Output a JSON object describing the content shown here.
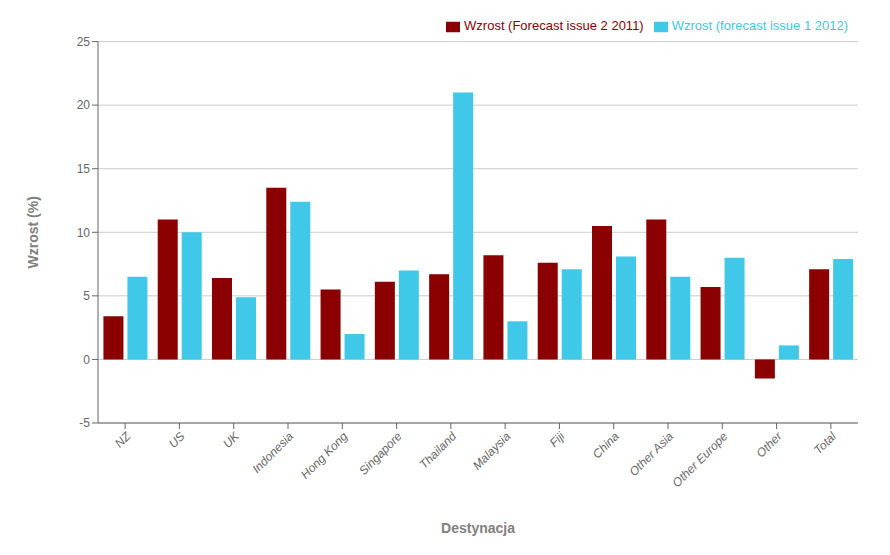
{
  "chart_data": {
    "type": "bar",
    "categories": [
      "NZ",
      "US",
      "UK",
      "Indonesia",
      "Hong Kong",
      "Singapore",
      "Thailand",
      "Malaysia",
      "Fiji",
      "China",
      "Other Asia",
      "Other Europe",
      "Other",
      "Total"
    ],
    "series": [
      {
        "name": "Wzrost (Forecast issue 2 2011)",
        "color": "#8B0000",
        "values": [
          3.4,
          11.0,
          6.4,
          13.5,
          5.5,
          6.1,
          6.7,
          8.2,
          7.6,
          10.5,
          11.0,
          5.7,
          -1.5,
          7.1
        ]
      },
      {
        "name": "Wzrost (forecast issue 1 2012)",
        "color": "#40C8E8",
        "values": [
          6.5,
          10.0,
          4.9,
          12.4,
          2.0,
          7.0,
          21.0,
          3.0,
          7.1,
          8.1,
          6.5,
          8.0,
          1.1,
          7.9
        ]
      }
    ],
    "xlabel": "Destynacja",
    "ylabel": "Wzrost (%)",
    "ylim": [
      -5,
      25
    ],
    "yticks": [
      -5,
      0,
      5,
      10,
      15,
      20,
      25
    ],
    "grid": true,
    "legend": "upper right"
  }
}
